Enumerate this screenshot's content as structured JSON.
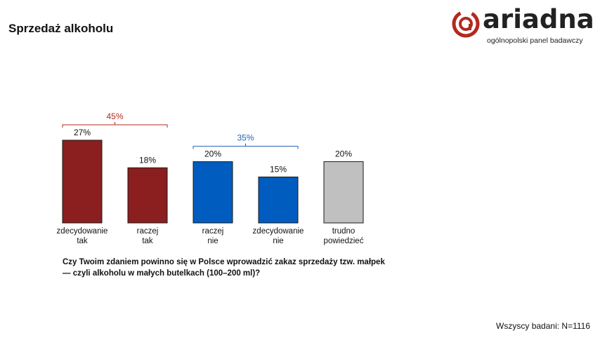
{
  "header": {
    "title": "Sprzedaż alkoholu"
  },
  "logo": {
    "name": "ariadna",
    "tagline": "ogólnopolski panel badawczy",
    "accent_color": "#b3291f"
  },
  "chart_data": {
    "type": "bar",
    "categories": [
      [
        "zdecydowanie",
        "tak"
      ],
      [
        "raczej",
        "tak"
      ],
      [
        "raczej",
        "nie"
      ],
      [
        "zdecydowanie",
        "nie"
      ],
      [
        "trudno",
        "powiedzieć"
      ]
    ],
    "values": [
      27,
      18,
      20,
      15,
      20
    ],
    "value_labels": [
      "27%",
      "18%",
      "20%",
      "15%",
      "20%"
    ],
    "colors": [
      "#8b1f1f",
      "#8b1f1f",
      "#005cbf",
      "#005cbf",
      "#c0c0c0"
    ],
    "groups": [
      {
        "label": "45%",
        "from": 0,
        "to": 1,
        "color": "#b3291f"
      },
      {
        "label": "35%",
        "from": 2,
        "to": 3,
        "color": "#1f63b8"
      }
    ],
    "ylim": [
      0,
      27
    ],
    "grid": false,
    "legend": "none"
  },
  "question": {
    "line1": "Czy Twoim zdaniem powinno się w Polsce wprowadzić zakaz sprzedaży tzw. małpek",
    "line2": "— czyli alkoholu w małych butelkach (100–200 ml)?"
  },
  "footer": {
    "sample": "Wszyscy badani: N=1116"
  }
}
